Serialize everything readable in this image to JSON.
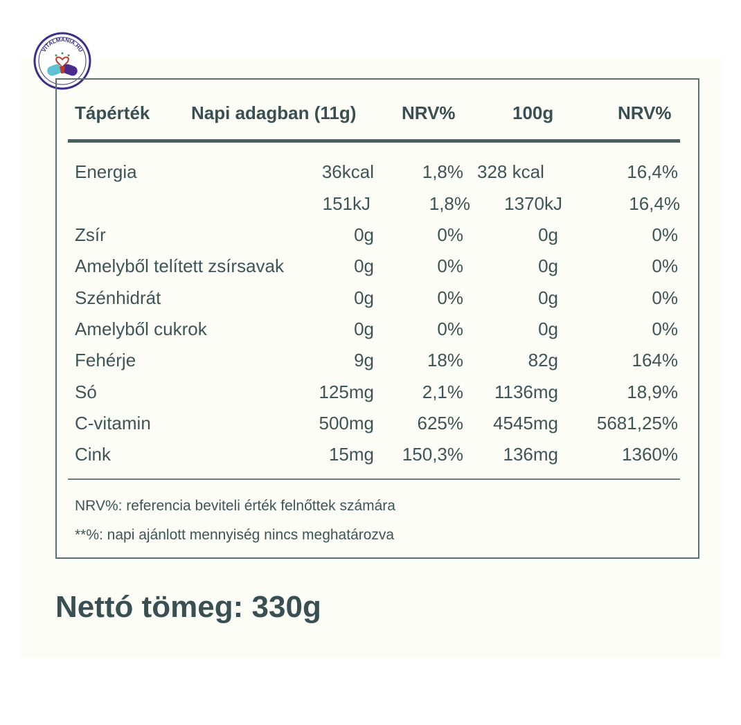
{
  "logo": {
    "text": "VITALMANIA.HU",
    "icon": "heart-pills-logo"
  },
  "table": {
    "headers": [
      "Tápérték",
      "Napi adagban (11g)",
      "NRV%",
      "100g",
      "NRV%"
    ],
    "rows": [
      [
        "Energia",
        "36kcal",
        "1,8%",
        "328 kcal",
        "16,4%"
      ],
      [
        "",
        "151kJ",
        "1,8%",
        "1370kJ",
        "16,4%"
      ],
      [
        "Zsír",
        "0g",
        "0%",
        "0g",
        "0%"
      ],
      [
        "Amelyből telített zsírsavak",
        "0g",
        "0%",
        "0g",
        "0%"
      ],
      [
        "Szénhidrát",
        "0g",
        "0%",
        "0g",
        "0%"
      ],
      [
        "Amelyből cukrok",
        "0g",
        "0%",
        "0g",
        "0%"
      ],
      [
        "Fehérje",
        "9g",
        "18%",
        "82g",
        "164%"
      ],
      [
        "Só",
        "125mg",
        "2,1%",
        "1136mg",
        "18,9%"
      ],
      [
        "C-vitamin",
        "500mg",
        "625%",
        "4545mg",
        "5681,25%"
      ],
      [
        "Cink",
        "15mg",
        "150,3%",
        "136mg",
        "1360%"
      ]
    ]
  },
  "notes": [
    "NRV%: referencia beviteli érték felnőttek számára",
    "**%: napi ajánlott mennyiség nincs meghatározva"
  ],
  "net_weight": "Nettó tömeg: 330g",
  "colors": {
    "text": "#3e5456",
    "rule": "#4a6163",
    "background": "#fdfdf7"
  }
}
